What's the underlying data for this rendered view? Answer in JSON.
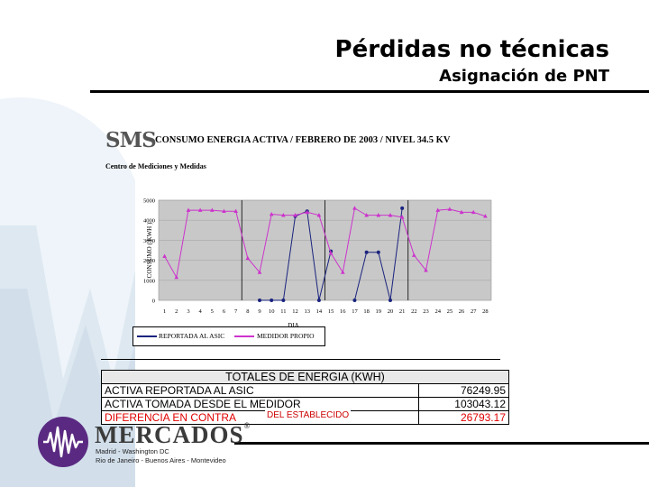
{
  "slide": {
    "title": "Pérdidas no técnicas",
    "subtitle": "Asignación de PNT"
  },
  "header_logo": {
    "mark": "SMS",
    "caption": "Centro de Mediciones y Medidas"
  },
  "chart_data": {
    "type": "line",
    "title": "CONSUMO ENERGIA ACTIVA / FEBRERO DE 2003 / NIVEL 34.5 KV",
    "xlabel": "DIA",
    "ylabel": "CONSUMO ( KWH )",
    "ylim": [
      0,
      5000
    ],
    "yticks": [
      "0",
      "1000",
      "2000",
      "3000",
      "4000",
      "5000"
    ],
    "grid": true,
    "legend_position": "bottom-left",
    "x": [
      "1",
      "2",
      "3",
      "4",
      "5",
      "6",
      "7",
      "8",
      "9",
      "10",
      "11",
      "12",
      "13",
      "14",
      "15",
      "16",
      "17",
      "18",
      "19",
      "20",
      "21",
      "22",
      "23",
      "24",
      "25",
      "26",
      "27",
      "28"
    ],
    "series": [
      {
        "name": "REPORTADA AL ASIC",
        "color": "#1a237e",
        "values": [
          null,
          null,
          null,
          null,
          null,
          null,
          null,
          null,
          0,
          0,
          0,
          4200,
          4450,
          0,
          2450,
          null,
          0,
          2400,
          2400,
          0,
          4600,
          null,
          null,
          null,
          null,
          null,
          null,
          null
        ]
      },
      {
        "name": "MEDIDOR PROPIO",
        "color": "#cc33cc",
        "values": [
          2200,
          1150,
          4500,
          4500,
          4500,
          4450,
          4450,
          2100,
          1400,
          4300,
          4250,
          4250,
          4400,
          4250,
          2350,
          1400,
          4600,
          4250,
          4250,
          4250,
          4150,
          2250,
          1500,
          4500,
          4550,
          4400,
          4400,
          4200
        ]
      }
    ]
  },
  "totals_table": {
    "header": "TOTALES DE ENERGIA (KWH)",
    "rows": [
      {
        "label": "ACTIVA REPORTADA AL ASIC",
        "value": "76249.95"
      },
      {
        "label": "ACTIVA TOMADA DESDE EL MEDIDOR",
        "value": "103043.12"
      },
      {
        "label": "DIFERENCIA EN CONTRA",
        "value": "26793.17"
      }
    ],
    "overlay_note": "DEL ESTABLECIDO"
  },
  "footer_logo": {
    "name": "MERCADOS",
    "registered": "®",
    "line1": "Madrid - Washington DC",
    "line2": "Rio de Janeiro - Buenos Aires - Montevideo"
  },
  "colors": {
    "accent_purple": "#5a2a82",
    "difference_red": "#e00000"
  }
}
